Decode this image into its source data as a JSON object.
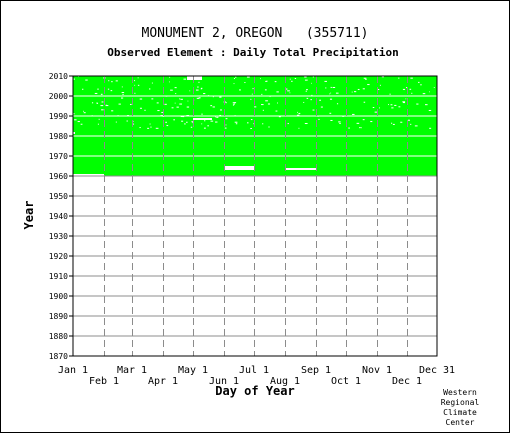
{
  "chart_data": {
    "type": "heatmap",
    "title": "MONUMENT 2, OREGON   (355711)",
    "subtitle": "Observed Element : Daily Total Precipitation",
    "xlabel": "Day of Year",
    "ylabel": "Year",
    "ylim": [
      1870,
      2010
    ],
    "ytick_values": [
      1870,
      1880,
      1890,
      1900,
      1910,
      1920,
      1930,
      1940,
      1950,
      1960,
      1970,
      1980,
      1990,
      2000,
      2010
    ],
    "x_ticks_row1": [
      {
        "label": "Jan 1",
        "day": 1
      },
      {
        "label": "Mar 1",
        "day": 60
      },
      {
        "label": "May 1",
        "day": 121
      },
      {
        "label": "Jul 1",
        "day": 182
      },
      {
        "label": "Sep 1",
        "day": 244
      },
      {
        "label": "Nov 1",
        "day": 305
      },
      {
        "label": "Dec 31",
        "day": 365
      }
    ],
    "x_ticks_row2": [
      {
        "label": "Feb 1",
        "day": 32
      },
      {
        "label": "Apr 1",
        "day": 91
      },
      {
        "label": "Jun 1",
        "day": 152
      },
      {
        "label": "Aug 1",
        "day": 213
      },
      {
        "label": "Oct 1",
        "day": 274
      },
      {
        "label": "Dec 1",
        "day": 335
      }
    ],
    "xlim": [
      1,
      365
    ],
    "data_present_years": [
      1960,
      2010
    ],
    "present_color": "#00ff00",
    "missing_gaps": [
      {
        "year_start": 1960,
        "year_end": 1961,
        "day_start": 1,
        "day_end": 32
      },
      {
        "year_start": 1963,
        "year_end": 1965,
        "day_start": 152,
        "day_end": 182
      },
      {
        "year_start": 1963,
        "year_end": 1964,
        "day_start": 213,
        "day_end": 244
      },
      {
        "year_start": 1988,
        "year_end": 1989,
        "day_start": 121,
        "day_end": 140
      },
      {
        "year_start": 1981,
        "year_end": 1982,
        "day_start": 1,
        "day_end": 3
      },
      {
        "year_start": 2008,
        "year_end": 2010,
        "day_start": 115,
        "day_end": 130
      }
    ],
    "grid": true,
    "legend": "none"
  },
  "credit": [
    "Western",
    "Regional",
    "Climate",
    "Center"
  ]
}
